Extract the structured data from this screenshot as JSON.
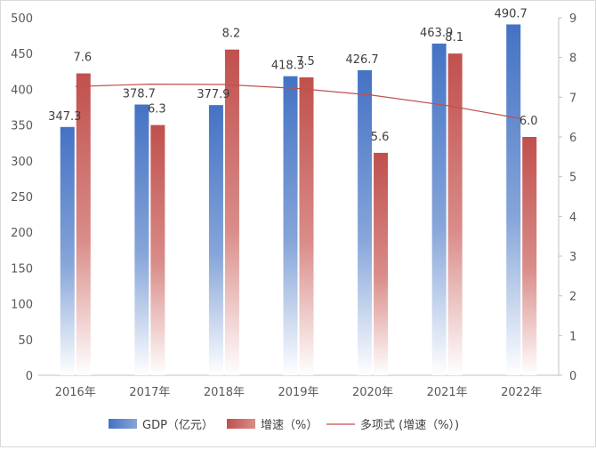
{
  "chart_data": {
    "type": "bar",
    "title": "",
    "categories": [
      "2016年",
      "2017年",
      "2018年",
      "2019年",
      "2020年",
      "2021年",
      "2022年"
    ],
    "series": [
      {
        "name": "GDP（亿元）",
        "axis": "left",
        "values": [
          347.3,
          378.7,
          377.9,
          418.3,
          426.7,
          463.9,
          490.7
        ],
        "labels": [
          "347.3",
          "378.7",
          "377.9",
          "418.3",
          "426.7",
          "463.9",
          "490.7"
        ],
        "color": "#4472c4"
      },
      {
        "name": "增速（%）",
        "axis": "right",
        "values": [
          7.6,
          6.3,
          8.2,
          7.5,
          5.6,
          8.1,
          6.0
        ],
        "labels": [
          "7.6",
          "6.3",
          "8.2",
          "7.5",
          "5.6",
          "8.1",
          "6.0"
        ],
        "color": "#c0504d"
      }
    ],
    "trendline": {
      "name": "多项式 (增速（%）)",
      "type": "polynomial",
      "order": 2,
      "values": [
        7.27,
        7.33,
        7.32,
        7.22,
        7.05,
        6.79,
        6.46
      ],
      "color": "#c0504d"
    },
    "left_axis": {
      "ylim": [
        0,
        500
      ],
      "ticks": [
        "0",
        "50",
        "100",
        "150",
        "200",
        "250",
        "300",
        "350",
        "400",
        "450",
        "500"
      ]
    },
    "right_axis": {
      "ylim": [
        0,
        9
      ],
      "ticks": [
        "0",
        "1",
        "2",
        "3",
        "4",
        "5",
        "6",
        "7",
        "8",
        "9"
      ]
    },
    "legend": {
      "position": "bottom",
      "labels": [
        "GDP（亿元）",
        "增速（%）",
        "多项式 (增速（%）)"
      ]
    },
    "grid": false
  }
}
